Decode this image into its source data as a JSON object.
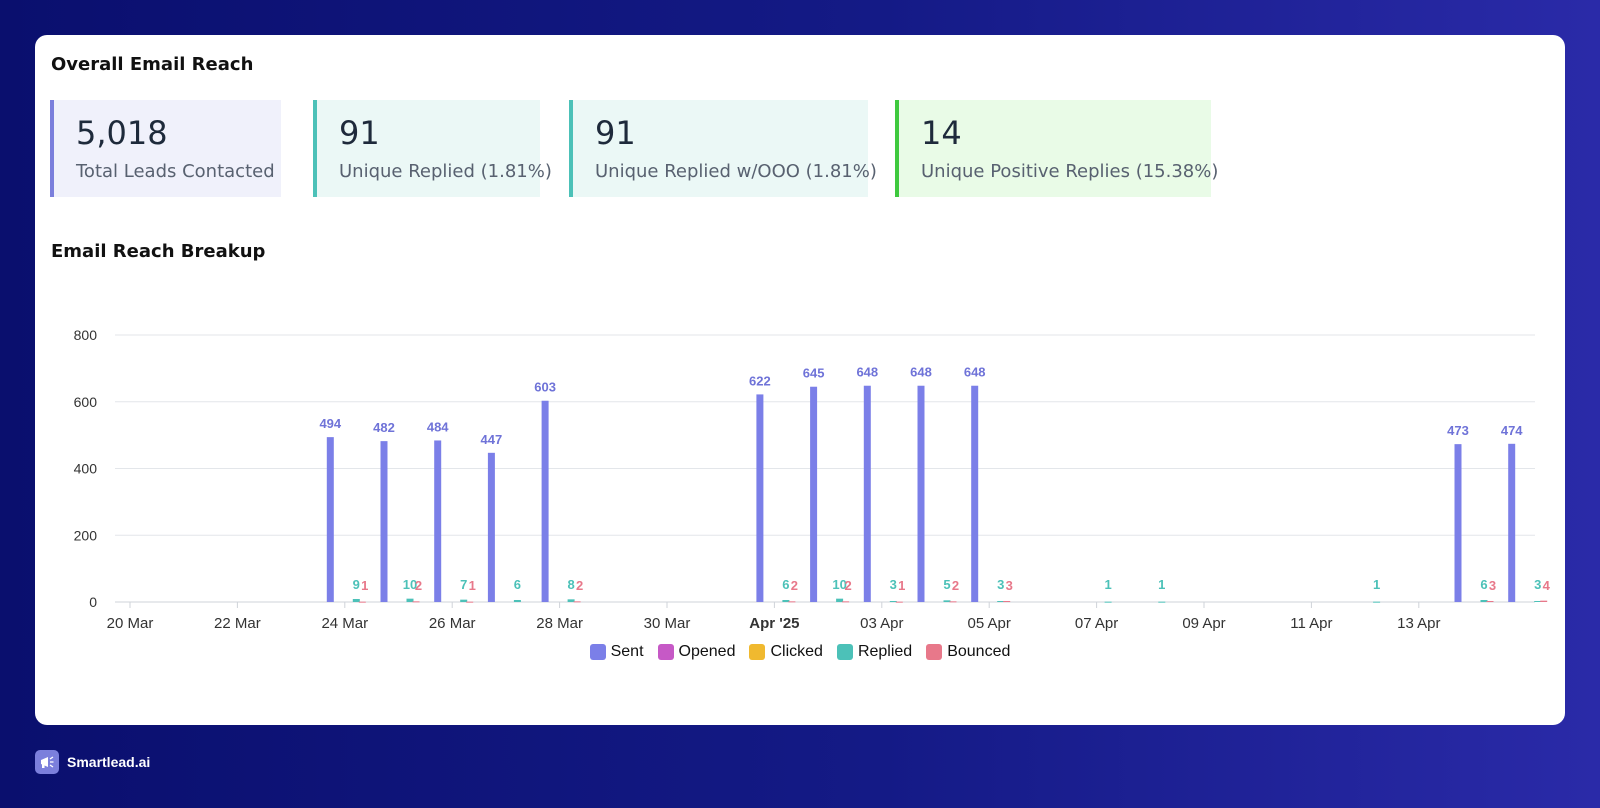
{
  "card": {
    "title": "Overall Email Reach",
    "stats": [
      {
        "value": "5,018",
        "label": "Total Leads Contacted",
        "accent": "#7b7fdc",
        "bg": "#f0f1fb"
      },
      {
        "value": "91",
        "label": "Unique Replied (1.81%)",
        "accent": "#4cc1b8",
        "bg": "#ebf8f6"
      },
      {
        "value": "91",
        "label": "Unique Replied w/OOO (1.81%)",
        "accent": "#4cc1b8",
        "bg": "#ebf8f6"
      },
      {
        "value": "14",
        "label": "Unique Positive Replies (15.38%)",
        "accent": "#3ec93e",
        "bg": "#e9fbe7"
      }
    ],
    "breakup_title": "Email Reach Breakup"
  },
  "brand": {
    "name": "Smartlead.ai",
    "logo_icon": "megaphone-icon"
  },
  "chart_data": {
    "type": "bar",
    "ylim": [
      0,
      800
    ],
    "yticks": [
      0,
      200,
      400,
      600,
      800
    ],
    "x_ticks": [
      "20 Mar",
      "22 Mar",
      "24 Mar",
      "26 Mar",
      "28 Mar",
      "30 Mar",
      "Apr '25",
      "03 Apr",
      "05 Apr",
      "07 Apr",
      "09 Apr",
      "11 Apr",
      "13 Apr"
    ],
    "x_ticks_bold": [
      "Apr '25"
    ],
    "categories": [
      "2025-03-20",
      "2025-03-21",
      "2025-03-22",
      "2025-03-23",
      "2025-03-24",
      "2025-03-25",
      "2025-03-26",
      "2025-03-27",
      "2025-03-28",
      "2025-03-29",
      "2025-03-30",
      "2025-03-31",
      "2025-04-01",
      "2025-04-02",
      "2025-04-03",
      "2025-04-04",
      "2025-04-05",
      "2025-04-06",
      "2025-04-07",
      "2025-04-08",
      "2025-04-09",
      "2025-04-10",
      "2025-04-11",
      "2025-04-12",
      "2025-04-13",
      "2025-04-14",
      "2025-04-15"
    ],
    "series": [
      {
        "name": "Sent",
        "color": "#7b7fe8",
        "values": [
          0,
          0,
          0,
          0,
          494,
          482,
          484,
          447,
          603,
          0,
          0,
          0,
          622,
          645,
          648,
          648,
          648,
          0,
          0,
          0,
          0,
          0,
          0,
          0,
          0,
          473,
          474
        ]
      },
      {
        "name": "Opened",
        "color": "#c659c6",
        "values": [
          0,
          0,
          0,
          0,
          0,
          0,
          0,
          0,
          0,
          0,
          0,
          0,
          0,
          0,
          0,
          0,
          0,
          0,
          0,
          0,
          0,
          0,
          0,
          0,
          0,
          0,
          0
        ]
      },
      {
        "name": "Clicked",
        "color": "#f0b92f",
        "values": [
          0,
          0,
          0,
          0,
          0,
          0,
          0,
          0,
          0,
          0,
          0,
          0,
          0,
          0,
          0,
          0,
          0,
          0,
          0,
          0,
          0,
          0,
          0,
          0,
          0,
          0,
          0
        ]
      },
      {
        "name": "Replied",
        "color": "#4cc1b8",
        "values": [
          0,
          0,
          0,
          0,
          9,
          10,
          7,
          6,
          8,
          0,
          0,
          0,
          6,
          10,
          3,
          5,
          3,
          0,
          1,
          1,
          0,
          0,
          0,
          1,
          0,
          6,
          3
        ]
      },
      {
        "name": "Bounced",
        "color": "#e8788a",
        "values": [
          0,
          0,
          0,
          0,
          1,
          2,
          1,
          0,
          2,
          0,
          0,
          0,
          2,
          2,
          1,
          2,
          3,
          0,
          0,
          0,
          0,
          0,
          0,
          0,
          0,
          3,
          4
        ]
      }
    ],
    "legend_position": "bottom",
    "grid": true
  }
}
